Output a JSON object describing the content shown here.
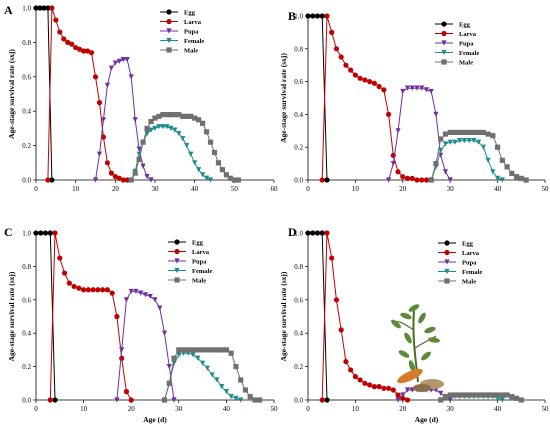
{
  "colors": {
    "egg": "#000000",
    "larva": "#c00000",
    "pupa": "#7030a0",
    "female": "#1e8c8c",
    "male": "#707070"
  },
  "chart_data": [
    {
      "type": "line",
      "panel": "A",
      "xlabel": "",
      "ylabel": "Age-stage survival rate (sxj)",
      "xlim": [
        0,
        60
      ],
      "ylim": [
        0,
        1.0
      ],
      "xticks": [
        0,
        10,
        20,
        30,
        40,
        50,
        60
      ],
      "yticks": [
        "0.0",
        "0.2",
        "0.4",
        "0.6",
        "0.8",
        "1.0"
      ],
      "legend_position": "top-right",
      "series": [
        {
          "name": "Egg",
          "key": "egg",
          "x": [
            0,
            1,
            2,
            3,
            4
          ],
          "y": [
            1.0,
            1.0,
            1.0,
            1.0,
            0.0
          ]
        },
        {
          "name": "Larva",
          "key": "larva",
          "x": [
            3,
            4,
            5,
            6,
            7,
            8,
            9,
            10,
            11,
            12,
            13,
            14,
            15,
            16,
            17,
            18,
            19,
            20,
            21,
            22,
            23
          ],
          "y": [
            0.0,
            1.0,
            0.93,
            0.86,
            0.82,
            0.8,
            0.79,
            0.77,
            0.76,
            0.75,
            0.75,
            0.74,
            0.6,
            0.45,
            0.25,
            0.1,
            0.04,
            0.02,
            0.01,
            0.0,
            0.0
          ]
        },
        {
          "name": "Pupa",
          "key": "pupa",
          "x": [
            15,
            16,
            17,
            18,
            19,
            20,
            21,
            22,
            23,
            24,
            25,
            26,
            27,
            28,
            29
          ],
          "y": [
            0.0,
            0.15,
            0.35,
            0.55,
            0.65,
            0.68,
            0.69,
            0.7,
            0.7,
            0.6,
            0.35,
            0.18,
            0.08,
            0.02,
            0.0
          ]
        },
        {
          "name": "Female",
          "key": "female",
          "x": [
            24,
            25,
            26,
            27,
            28,
            29,
            30,
            31,
            32,
            33,
            34,
            35,
            36,
            37,
            38,
            39,
            40,
            41,
            42,
            43,
            44
          ],
          "y": [
            0.0,
            0.05,
            0.15,
            0.22,
            0.27,
            0.29,
            0.3,
            0.31,
            0.31,
            0.31,
            0.3,
            0.29,
            0.27,
            0.24,
            0.2,
            0.15,
            0.1,
            0.06,
            0.03,
            0.01,
            0.0
          ]
        },
        {
          "name": "Male",
          "key": "male",
          "x": [
            24,
            25,
            26,
            27,
            28,
            29,
            30,
            31,
            32,
            33,
            34,
            35,
            36,
            37,
            38,
            39,
            40,
            41,
            42,
            43,
            44,
            45,
            46,
            47,
            48,
            49,
            50,
            51
          ],
          "y": [
            0.0,
            0.04,
            0.12,
            0.22,
            0.3,
            0.34,
            0.36,
            0.37,
            0.38,
            0.38,
            0.38,
            0.38,
            0.38,
            0.37,
            0.37,
            0.37,
            0.36,
            0.35,
            0.33,
            0.28,
            0.22,
            0.16,
            0.1,
            0.06,
            0.03,
            0.01,
            0.0,
            0.0
          ]
        }
      ]
    },
    {
      "type": "line",
      "panel": "B",
      "xlabel": "",
      "ylabel": "Age-stage survival rate (sxj)",
      "xlim": [
        0,
        50
      ],
      "ylim": [
        0,
        1.0
      ],
      "xticks": [
        0,
        10,
        20,
        30,
        40,
        50
      ],
      "yticks": [
        "0.0",
        "0.2",
        "0.4",
        "0.6",
        "0.8",
        "1.0"
      ],
      "legend_position": "top-right",
      "series": [
        {
          "name": "Egg",
          "key": "egg",
          "x": [
            0,
            1,
            2,
            3,
            4
          ],
          "y": [
            1.0,
            1.0,
            1.0,
            1.0,
            0.0
          ]
        },
        {
          "name": "Larva",
          "key": "larva",
          "x": [
            3,
            4,
            5,
            6,
            7,
            8,
            9,
            10,
            11,
            12,
            13,
            14,
            15,
            16,
            17,
            18,
            19,
            20,
            21,
            22,
            23,
            24,
            25,
            26
          ],
          "y": [
            0.0,
            1.0,
            0.9,
            0.8,
            0.75,
            0.7,
            0.67,
            0.64,
            0.62,
            0.61,
            0.6,
            0.59,
            0.57,
            0.55,
            0.4,
            0.15,
            0.05,
            0.02,
            0.01,
            0.01,
            0.0,
            0.0,
            0.0,
            0.0
          ]
        },
        {
          "name": "Pupa",
          "key": "pupa",
          "x": [
            17,
            18,
            19,
            20,
            21,
            22,
            23,
            24,
            25,
            26,
            27,
            28,
            29,
            30
          ],
          "y": [
            0.0,
            0.1,
            0.3,
            0.54,
            0.56,
            0.56,
            0.56,
            0.56,
            0.55,
            0.54,
            0.4,
            0.15,
            0.05,
            0.0
          ]
        },
        {
          "name": "Female",
          "key": "female",
          "x": [
            26,
            27,
            28,
            29,
            30,
            31,
            32,
            33,
            34,
            35,
            36,
            37,
            38,
            39,
            40,
            41
          ],
          "y": [
            0.0,
            0.08,
            0.18,
            0.22,
            0.23,
            0.23,
            0.24,
            0.24,
            0.24,
            0.24,
            0.23,
            0.2,
            0.12,
            0.05,
            0.01,
            0.0
          ]
        },
        {
          "name": "Male",
          "key": "male",
          "x": [
            26,
            27,
            28,
            29,
            30,
            31,
            32,
            33,
            34,
            35,
            36,
            37,
            38,
            39,
            40,
            41,
            42,
            43,
            44,
            45,
            46
          ],
          "y": [
            0.0,
            0.1,
            0.25,
            0.28,
            0.29,
            0.29,
            0.29,
            0.29,
            0.29,
            0.29,
            0.29,
            0.29,
            0.28,
            0.27,
            0.2,
            0.12,
            0.08,
            0.04,
            0.02,
            0.01,
            0.0
          ]
        }
      ]
    },
    {
      "type": "line",
      "panel": "C",
      "xlabel": "Age (d)",
      "ylabel": "Age-stage survival rate (sxj)",
      "xlim": [
        0,
        50
      ],
      "ylim": [
        0,
        1.0
      ],
      "xticks": [
        0,
        10,
        20,
        30,
        40,
        50
      ],
      "yticks": [
        "0.0",
        "0.2",
        "0.4",
        "0.6",
        "0.8",
        "1.0"
      ],
      "legend_position": "top-right",
      "series": [
        {
          "name": "Egg",
          "key": "egg",
          "x": [
            0,
            1,
            2,
            3,
            4
          ],
          "y": [
            1.0,
            1.0,
            1.0,
            1.0,
            0.0
          ]
        },
        {
          "name": "Larva",
          "key": "larva",
          "x": [
            3,
            4,
            5,
            6,
            7,
            8,
            9,
            10,
            11,
            12,
            13,
            14,
            15,
            16,
            17,
            18,
            19,
            20
          ],
          "y": [
            0.0,
            1.0,
            0.85,
            0.76,
            0.7,
            0.68,
            0.67,
            0.66,
            0.66,
            0.66,
            0.66,
            0.66,
            0.66,
            0.64,
            0.5,
            0.25,
            0.05,
            0.0
          ]
        },
        {
          "name": "Pupa",
          "key": "pupa",
          "x": [
            17,
            18,
            19,
            20,
            21,
            22,
            23,
            24,
            25,
            26,
            27,
            28,
            29
          ],
          "y": [
            0.0,
            0.3,
            0.6,
            0.65,
            0.65,
            0.64,
            0.63,
            0.62,
            0.6,
            0.55,
            0.4,
            0.2,
            0.0
          ]
        },
        {
          "name": "Female",
          "key": "female",
          "x": [
            27,
            28,
            29,
            30,
            31,
            32,
            33,
            34,
            35,
            36,
            37,
            38,
            39,
            40,
            41,
            42,
            43
          ],
          "y": [
            0.0,
            0.1,
            0.22,
            0.27,
            0.28,
            0.28,
            0.27,
            0.25,
            0.22,
            0.19,
            0.15,
            0.12,
            0.08,
            0.05,
            0.02,
            0.01,
            0.0
          ]
        },
        {
          "name": "Male",
          "key": "male",
          "x": [
            27,
            28,
            29,
            30,
            31,
            32,
            33,
            34,
            35,
            36,
            37,
            38,
            39,
            40,
            41,
            42,
            43,
            44,
            45,
            46,
            47
          ],
          "y": [
            0.0,
            0.1,
            0.25,
            0.3,
            0.3,
            0.3,
            0.3,
            0.3,
            0.3,
            0.3,
            0.3,
            0.3,
            0.3,
            0.3,
            0.28,
            0.2,
            0.12,
            0.06,
            0.02,
            0.0,
            0.0
          ]
        }
      ]
    },
    {
      "type": "line",
      "panel": "D",
      "xlabel": "Age (d)",
      "ylabel": "Age-stage survival rate (sxj)",
      "xlim": [
        0,
        50
      ],
      "ylim": [
        0,
        1.0
      ],
      "xticks": [
        0,
        10,
        20,
        30,
        40,
        50
      ],
      "yticks": [
        "0.0",
        "0.2",
        "0.4",
        "0.6",
        "0.8",
        "1.0"
      ],
      "legend_position": "top-right",
      "series": [
        {
          "name": "Egg",
          "key": "egg",
          "x": [
            0,
            1,
            2,
            3,
            4
          ],
          "y": [
            1.0,
            1.0,
            1.0,
            1.0,
            0.0
          ]
        },
        {
          "name": "Larva",
          "key": "larva",
          "x": [
            3,
            4,
            5,
            6,
            7,
            8,
            9,
            10,
            11,
            12,
            13,
            14,
            15,
            16,
            17,
            18,
            19,
            20,
            21
          ],
          "y": [
            0.0,
            1.0,
            0.85,
            0.6,
            0.42,
            0.23,
            0.18,
            0.14,
            0.12,
            0.1,
            0.09,
            0.08,
            0.08,
            0.07,
            0.07,
            0.06,
            0.03,
            0.01,
            0.0
          ]
        },
        {
          "name": "Pupa",
          "key": "pupa",
          "x": [
            19,
            20,
            21,
            22,
            23,
            24,
            25,
            26,
            27,
            28,
            29,
            30
          ],
          "y": [
            0.0,
            0.03,
            0.06,
            0.06,
            0.06,
            0.06,
            0.06,
            0.06,
            0.06,
            0.04,
            0.02,
            0.0
          ]
        },
        {
          "name": "Female",
          "key": "female",
          "x": [
            28,
            29,
            30,
            31,
            32,
            33,
            34,
            35,
            36,
            37,
            38,
            39,
            40,
            41
          ],
          "y": [
            0.0,
            0.01,
            0.02,
            0.02,
            0.02,
            0.02,
            0.02,
            0.02,
            0.02,
            0.02,
            0.02,
            0.02,
            0.01,
            0.0
          ]
        },
        {
          "name": "Male",
          "key": "male",
          "x": [
            28,
            29,
            30,
            31,
            32,
            33,
            34,
            35,
            36,
            37,
            38,
            39,
            40,
            41,
            42,
            43,
            44,
            45
          ],
          "y": [
            0.0,
            0.02,
            0.03,
            0.03,
            0.03,
            0.03,
            0.03,
            0.03,
            0.03,
            0.03,
            0.03,
            0.03,
            0.03,
            0.03,
            0.03,
            0.02,
            0.01,
            0.0
          ]
        }
      ]
    }
  ]
}
